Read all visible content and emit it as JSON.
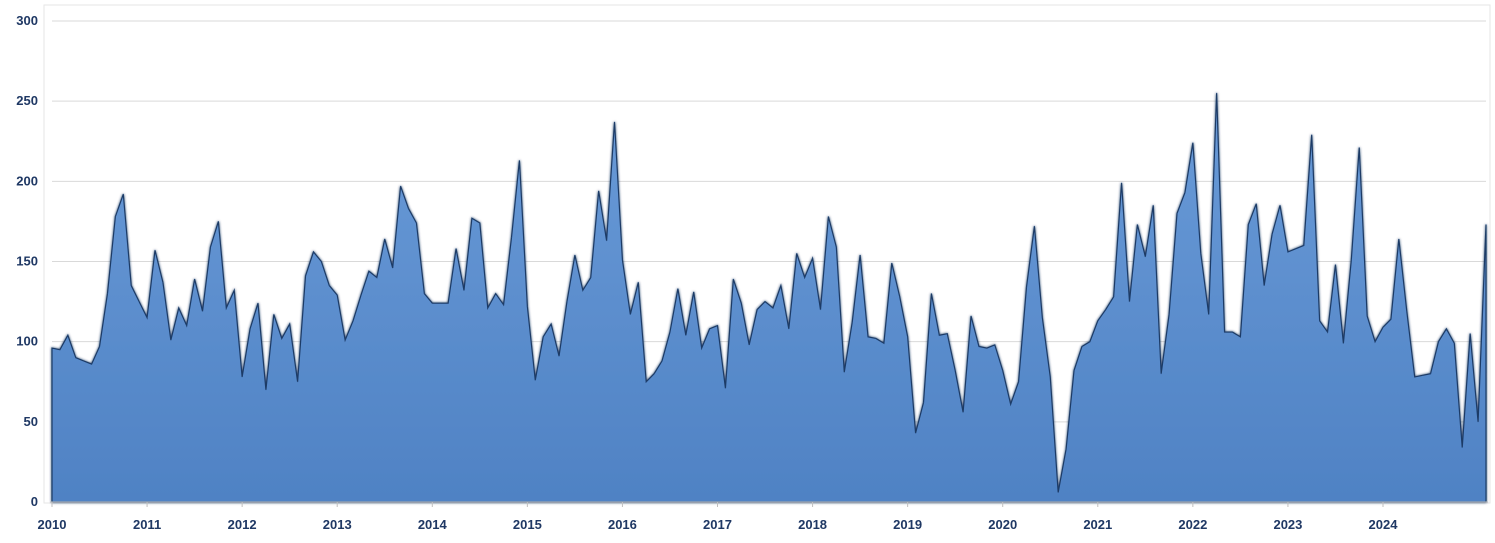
{
  "chart_data": {
    "type": "area",
    "title": "",
    "xlabel": "",
    "ylabel": "",
    "ylim": [
      0,
      300
    ],
    "y_ticks": [
      "0",
      "50",
      "100",
      "150",
      "200",
      "250",
      "300"
    ],
    "x_ticks": [
      "2010",
      "2011",
      "2012",
      "2013",
      "2014",
      "2015",
      "2016",
      "2017",
      "2018",
      "2019",
      "2020",
      "2021",
      "2022",
      "2023",
      "2024"
    ],
    "grid": "horizontal-light",
    "legend": "none",
    "start": "2010-01",
    "frequency": "monthly",
    "series": [
      {
        "color": "#5b8fd0",
        "values": [
          96,
          95,
          104,
          90,
          88,
          86,
          97,
          130,
          178,
          192,
          135,
          125,
          115,
          157,
          137,
          101,
          121,
          110,
          139,
          119,
          159,
          175,
          121,
          132,
          78,
          108,
          124,
          70,
          117,
          102,
          111,
          75,
          141,
          156,
          150,
          135,
          129,
          101,
          113,
          129,
          144,
          140,
          164,
          146,
          197,
          183,
          174,
          130,
          124,
          124,
          124,
          158,
          132,
          177,
          174,
          121,
          130,
          123,
          165,
          213,
          122,
          76,
          103,
          111,
          91,
          125,
          154,
          132,
          140,
          194,
          163,
          237,
          151,
          117,
          137,
          75,
          80,
          88,
          106,
          133,
          104,
          131,
          96,
          108,
          110,
          71,
          139,
          124,
          98,
          120,
          125,
          121,
          135,
          108,
          155,
          140,
          152,
          120,
          178,
          159,
          81,
          112,
          154,
          103,
          102,
          99,
          149,
          128,
          103,
          43,
          62,
          130,
          104,
          105,
          82,
          56,
          116,
          97,
          96,
          98,
          82,
          61,
          75,
          134,
          172,
          115,
          78,
          6,
          33,
          82,
          97,
          100,
          113,
          120,
          128,
          199,
          125,
          173,
          153,
          185,
          80,
          117,
          180,
          193,
          224,
          155,
          117,
          255,
          106,
          106,
          103,
          173,
          186,
          135,
          167,
          185,
          156,
          158,
          160,
          229,
          113,
          106,
          148,
          99,
          151,
          221,
          116,
          100,
          109,
          114,
          164,
          119,
          78,
          79,
          80,
          100,
          108,
          99,
          34,
          105,
          50,
          173
        ]
      }
    ]
  }
}
